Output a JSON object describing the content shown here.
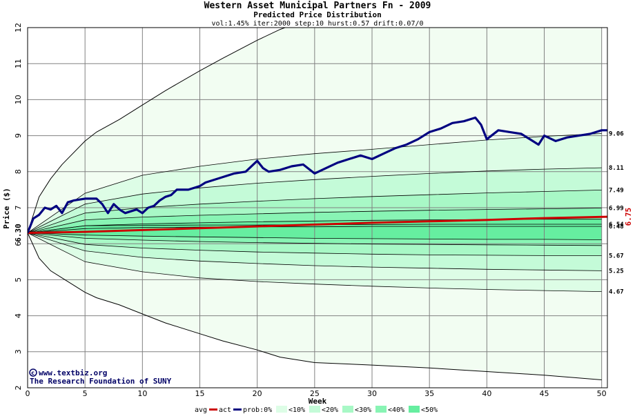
{
  "chart_data": {
    "type": "area",
    "title": "Western Asset Municipal Partners Fn - 2009",
    "subtitle": "Predicted Price Distribution",
    "params": "vol:1.45% iter:2000 step:10 hurst:0.57 drift:0.07/0",
    "xlabel": "Week",
    "ylabel": "Price ($)",
    "xlim": [
      0,
      50.5
    ],
    "ylim": [
      2,
      12
    ],
    "x_ticks": [
      "0",
      "5",
      "10",
      "15",
      "20",
      "25",
      "30",
      "35",
      "40",
      "45",
      "50"
    ],
    "y_ticks": [
      "2",
      "3",
      "4",
      "5",
      "6",
      "7",
      "8",
      "9",
      "10",
      "11",
      "12"
    ],
    "grid": true,
    "start_price": "6.30",
    "end_avg_label": "6.75",
    "right_labels": [
      "9.06",
      "8.11",
      "7.49",
      "6.99",
      "6.54",
      "6.48",
      "5.67",
      "5.25",
      "4.67"
    ],
    "credits": [
      "www.textbiz.org",
      "The Research Foundation of SUNY"
    ],
    "legend": {
      "items": [
        "avg",
        "act",
        "prob:0%",
        "<10%",
        "<20%",
        "<30%",
        "<40%",
        "<50%"
      ]
    },
    "band_colors": [
      "#f2fdf2",
      "#ddfde6",
      "#c4fbd8",
      "#a8f8c6",
      "#88f4b4",
      "#66eea0"
    ],
    "avg_color": "#cc0000",
    "act_color": "#000080",
    "envelope": {
      "x": [
        0,
        1,
        2,
        3,
        5,
        6,
        8,
        10,
        12,
        15,
        17,
        20,
        22,
        25,
        30,
        35,
        40,
        45,
        50
      ],
      "upper": [
        6.3,
        7.3,
        7.8,
        8.2,
        8.85,
        9.1,
        9.45,
        9.85,
        10.25,
        10.8,
        11.15,
        11.65,
        11.95,
        12.3,
        12.8,
        13.2,
        13.6,
        14.0,
        14.4
      ],
      "lower": [
        6.3,
        5.6,
        5.25,
        5.05,
        4.65,
        4.5,
        4.3,
        4.05,
        3.8,
        3.5,
        3.3,
        3.05,
        2.85,
        2.7,
        2.63,
        2.55,
        2.45,
        2.35,
        2.22
      ]
    },
    "quantiles": {
      "x": [
        0,
        5,
        10,
        15,
        20,
        25,
        30,
        35,
        40,
        45,
        50
      ],
      "upper": [
        [
          6.3,
          7.4,
          7.9,
          8.15,
          8.35,
          8.5,
          8.62,
          8.75,
          8.88,
          8.98,
          9.06
        ],
        [
          6.3,
          7.1,
          7.38,
          7.55,
          7.68,
          7.78,
          7.87,
          7.95,
          8.02,
          8.07,
          8.11
        ],
        [
          6.3,
          6.85,
          7.0,
          7.1,
          7.18,
          7.25,
          7.31,
          7.36,
          7.41,
          7.45,
          7.49
        ],
        [
          6.3,
          6.66,
          6.74,
          6.79,
          6.83,
          6.87,
          6.9,
          6.93,
          6.95,
          6.97,
          6.99
        ],
        [
          6.3,
          6.5,
          6.55,
          6.58,
          6.61,
          6.63,
          6.65,
          6.66,
          6.67,
          6.68,
          6.68
        ]
      ],
      "lower": [
        [
          6.3,
          5.5,
          5.22,
          5.05,
          4.95,
          4.88,
          4.82,
          4.77,
          4.73,
          4.7,
          4.67
        ],
        [
          6.3,
          5.8,
          5.62,
          5.52,
          5.45,
          5.39,
          5.35,
          5.32,
          5.29,
          5.27,
          5.25
        ],
        [
          6.3,
          5.98,
          5.88,
          5.82,
          5.77,
          5.74,
          5.71,
          5.69,
          5.68,
          5.67,
          5.67
        ],
        [
          6.3,
          6.15,
          6.1,
          6.06,
          6.03,
          6.01,
          5.99,
          5.98,
          5.97,
          5.96,
          5.95
        ],
        [
          6.3,
          6.24,
          6.21,
          6.19,
          6.17,
          6.15,
          6.14,
          6.13,
          6.12,
          6.12,
          6.11
        ]
      ]
    },
    "middle_lines": [
      [
        6.3,
        6.42,
        6.45,
        6.46,
        6.47,
        6.47,
        6.48,
        6.48,
        6.48,
        6.48,
        6.48
      ],
      [
        6.3,
        6.5,
        6.51,
        6.52,
        6.52,
        6.53,
        6.53,
        6.54,
        6.54,
        6.54,
        6.54
      ]
    ],
    "series": [
      {
        "name": "avg",
        "x": [
          0,
          5,
          10,
          15,
          20,
          25,
          30,
          35,
          40,
          45,
          50.5
        ],
        "values": [
          6.3,
          6.33,
          6.38,
          6.43,
          6.48,
          6.53,
          6.58,
          6.62,
          6.66,
          6.71,
          6.75
        ]
      },
      {
        "name": "act",
        "x": [
          0,
          0.5,
          1,
          1.5,
          2,
          2.5,
          3,
          3.5,
          4,
          5,
          6,
          6.5,
          7,
          7.5,
          8,
          8.5,
          9,
          9.5,
          10,
          10.5,
          11,
          11.5,
          12,
          12.5,
          13,
          14,
          15,
          15.5,
          16,
          17,
          18,
          19,
          20,
          20.5,
          21,
          22,
          23,
          24,
          25,
          26,
          27,
          28,
          29,
          30,
          31,
          32,
          33,
          34,
          35,
          36,
          37,
          38,
          39,
          39.5,
          40,
          41,
          42,
          43,
          44,
          44.5,
          45,
          46,
          47,
          48,
          49,
          50,
          50.5
        ],
        "values": [
          6.3,
          6.7,
          6.8,
          7.0,
          6.95,
          7.05,
          6.85,
          7.15,
          7.2,
          7.25,
          7.25,
          7.1,
          6.85,
          7.1,
          6.95,
          6.85,
          6.9,
          6.95,
          6.85,
          7.0,
          7.05,
          7.2,
          7.3,
          7.35,
          7.5,
          7.5,
          7.6,
          7.7,
          7.75,
          7.85,
          7.95,
          8.0,
          8.3,
          8.1,
          8.0,
          8.05,
          8.15,
          8.2,
          7.95,
          8.1,
          8.25,
          8.35,
          8.45,
          8.35,
          8.5,
          8.65,
          8.75,
          8.9,
          9.1,
          9.2,
          9.35,
          9.4,
          9.5,
          9.3,
          8.9,
          9.15,
          9.1,
          9.05,
          8.85,
          8.75,
          9.0,
          8.85,
          8.95,
          9.0,
          9.05,
          9.15,
          9.15
        ]
      }
    ]
  }
}
